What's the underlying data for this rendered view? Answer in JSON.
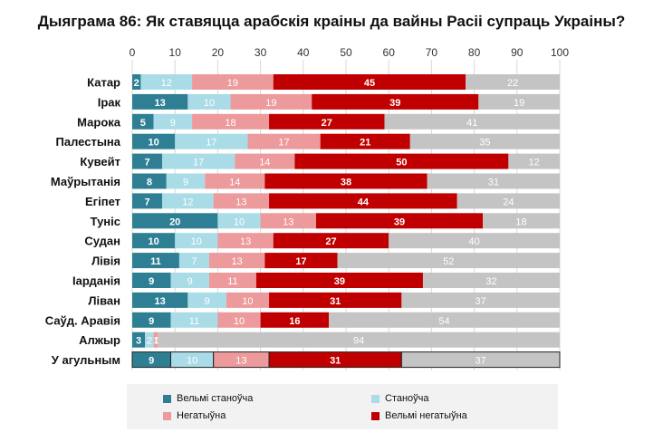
{
  "chart_data": {
    "type": "bar",
    "orientation": "horizontal",
    "stacked": true,
    "title": "Дыяграма 86: Як ставяцца арабскія краіны да вайны Расіі супраць Украіны?",
    "xlim": [
      0,
      100
    ],
    "x_ticks": [
      "0",
      "10",
      "20",
      "30",
      "40",
      "50",
      "60",
      "70",
      "80",
      "90",
      "100"
    ],
    "categories": [
      "Катар",
      "Ірак",
      "Марока",
      "Палестына",
      "Кувейт",
      "Маўрытанія",
      "Егіпет",
      "Туніс",
      "Судан",
      "Лівія",
      "Іарданія",
      "Ліван",
      "Саўд. Аравія",
      "Алжыр",
      "У агульным"
    ],
    "series": [
      {
        "name": "Вельмі станоўча",
        "color": "#2e7f94",
        "values": [
          2,
          13,
          5,
          10,
          7,
          8,
          7,
          20,
          10,
          11,
          9,
          13,
          9,
          3,
          9
        ]
      },
      {
        "name": "Станоўча",
        "color": "#a9dce6",
        "values": [
          12,
          10,
          9,
          17,
          17,
          9,
          12,
          10,
          10,
          7,
          9,
          9,
          11,
          2,
          10
        ]
      },
      {
        "name": "Негатыўна",
        "color": "#ec9a9c",
        "values": [
          19,
          19,
          18,
          17,
          14,
          14,
          13,
          13,
          13,
          13,
          11,
          10,
          10,
          1,
          13
        ]
      },
      {
        "name": "Вельмі негатыўна",
        "color": "#c00000",
        "values": [
          45,
          39,
          27,
          21,
          50,
          38,
          44,
          39,
          27,
          17,
          39,
          31,
          16,
          0,
          31
        ]
      },
      {
        "name": "",
        "color": "#c4c4c4",
        "values": [
          22,
          19,
          41,
          35,
          12,
          31,
          24,
          18,
          40,
          52,
          32,
          37,
          54,
          94,
          37
        ]
      }
    ],
    "highlight_category": "У агульным",
    "grid": true,
    "legend_position": "bottom"
  }
}
